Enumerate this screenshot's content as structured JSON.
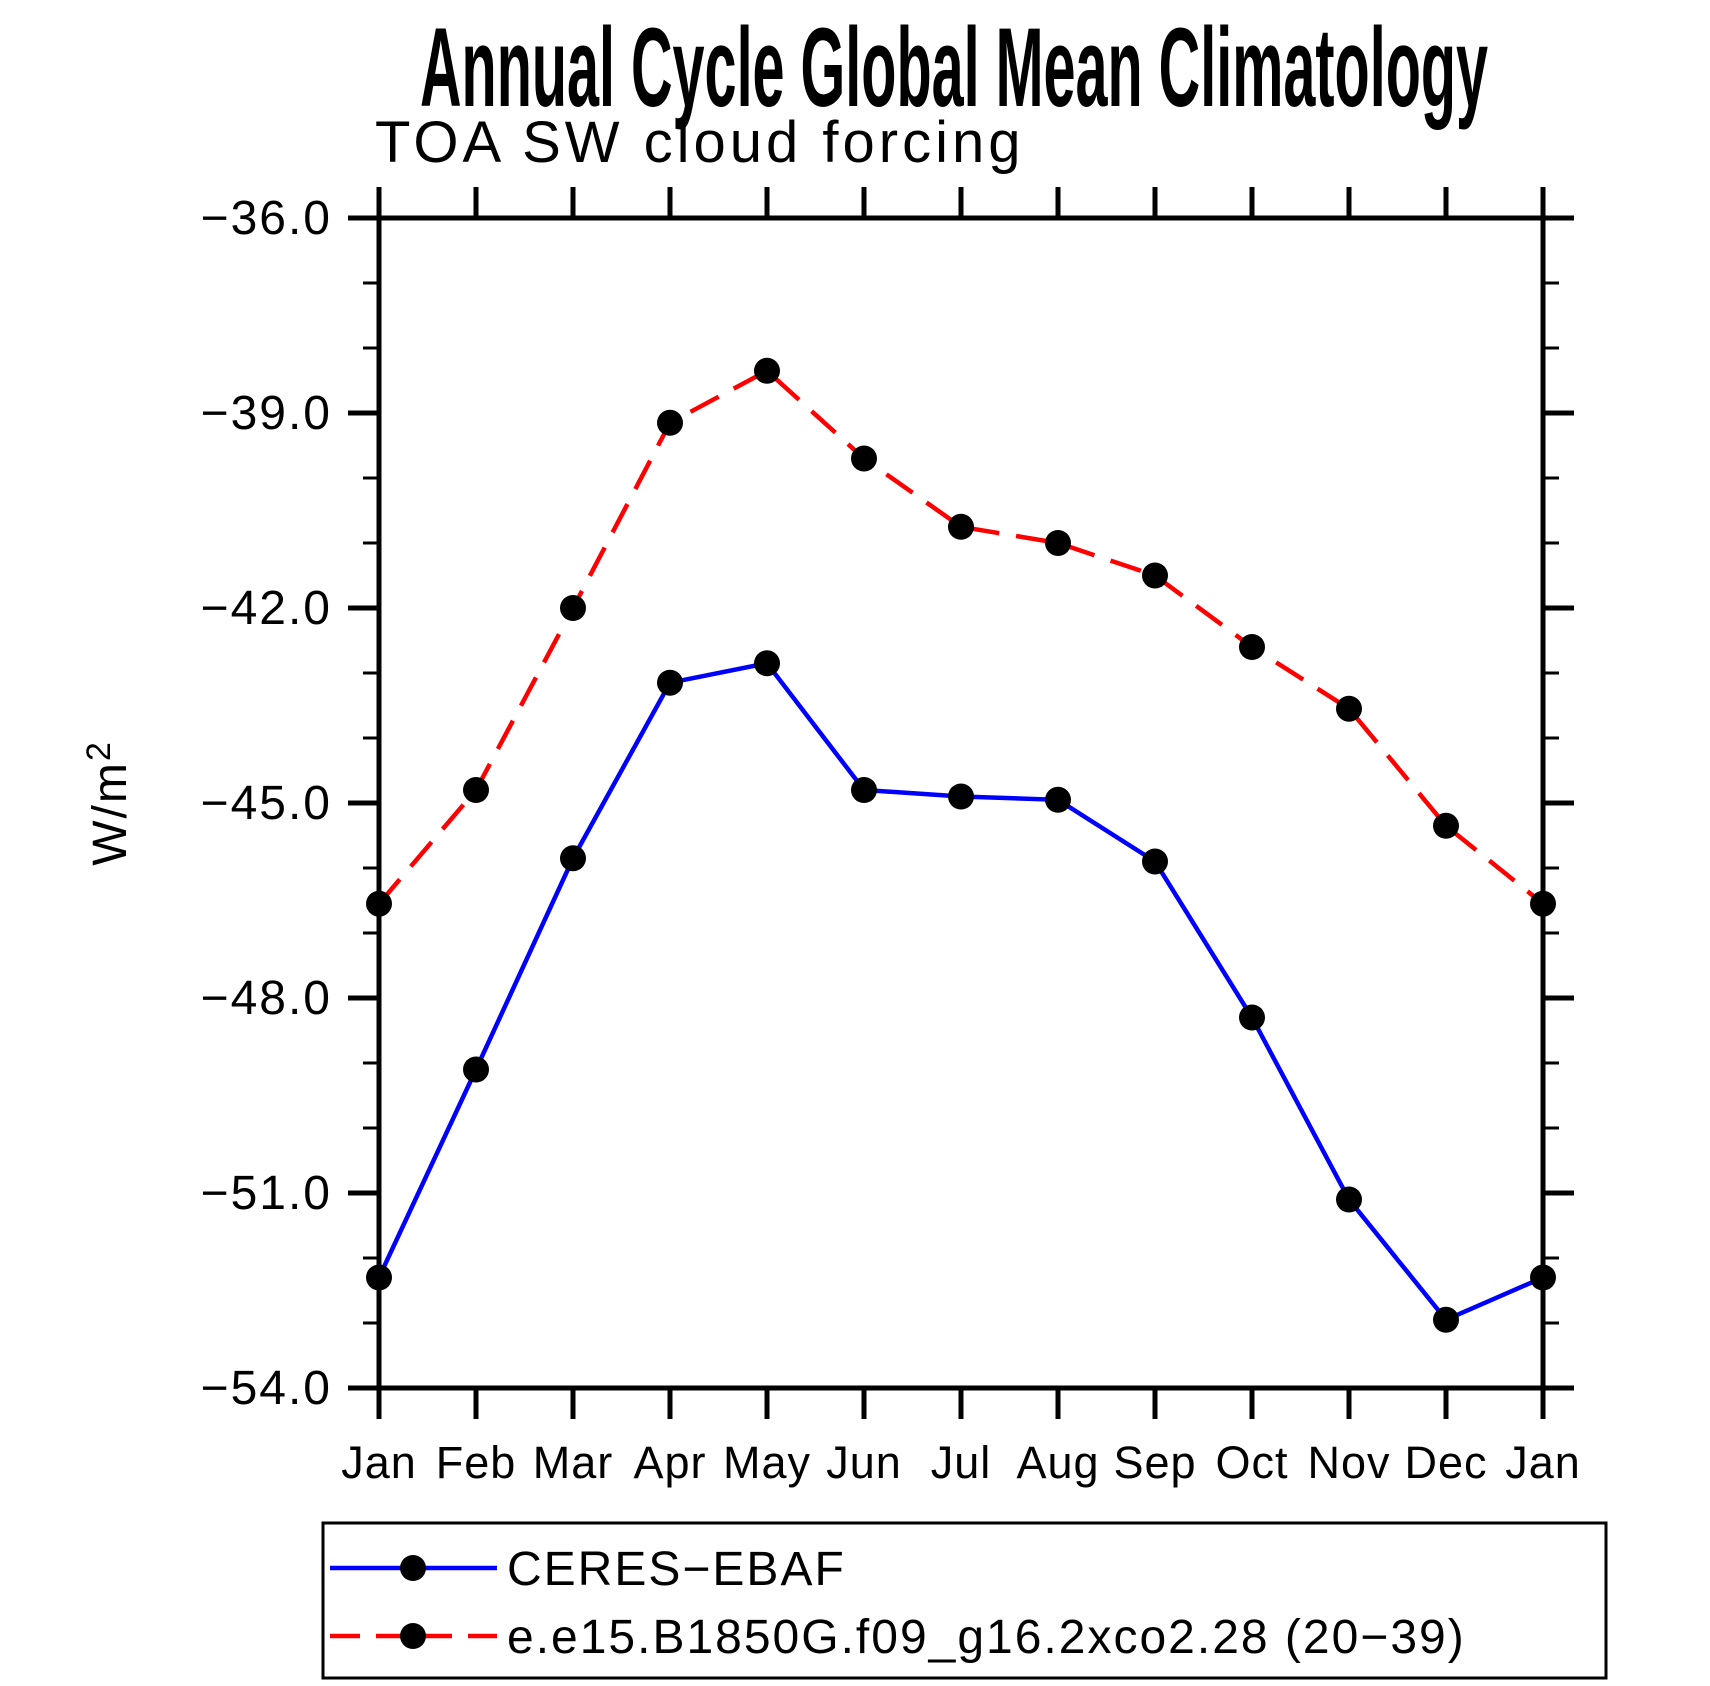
{
  "header": {
    "title": "Annual Cycle Global Mean Climatology",
    "subtitle": "TOA SW cloud forcing"
  },
  "chart_data": {
    "type": "line",
    "title": "Annual Cycle Global Mean Climatology",
    "subtitle": "TOA SW cloud forcing",
    "ylabel_base": "W/m",
    "ylabel_exponent": "2",
    "xlabel": "",
    "categories": [
      "Jan",
      "Feb",
      "Mar",
      "Apr",
      "May",
      "Jun",
      "Jul",
      "Aug",
      "Sep",
      "Oct",
      "Nov",
      "Dec",
      "Jan"
    ],
    "ylim": [
      -54.0,
      -36.0
    ],
    "ytick_minor_step": 1.0,
    "yticks": [
      {
        "value": -36.0,
        "label": "−36.0"
      },
      {
        "value": -39.0,
        "label": "−39.0"
      },
      {
        "value": -42.0,
        "label": "−42.0"
      },
      {
        "value": -45.0,
        "label": "−45.0"
      },
      {
        "value": -48.0,
        "label": "−48.0"
      },
      {
        "value": -51.0,
        "label": "−51.0"
      },
      {
        "value": -54.0,
        "label": "−54.0"
      }
    ],
    "grid": false,
    "legend_position": "bottom",
    "series": [
      {
        "name": "CERES−EBAF",
        "color": "#0000ff",
        "line_style": "solid",
        "marker": "circle",
        "marker_color": "#000000",
        "values": [
          -52.3,
          -49.1,
          -45.85,
          -43.15,
          -42.85,
          -44.8,
          -44.9,
          -44.95,
          -45.9,
          -48.3,
          -51.1,
          -52.95,
          -52.3
        ]
      },
      {
        "name": "e.e15.B1850G.f09_g16.2xco2.28 (20−39)",
        "color": "#ff0000",
        "line_style": "dashed",
        "marker": "circle",
        "marker_color": "#000000",
        "values": [
          -46.55,
          -44.8,
          -42.0,
          -39.15,
          -38.35,
          -39.7,
          -40.75,
          -41.0,
          -41.5,
          -42.6,
          -43.55,
          -45.35,
          -46.55
        ]
      }
    ]
  }
}
